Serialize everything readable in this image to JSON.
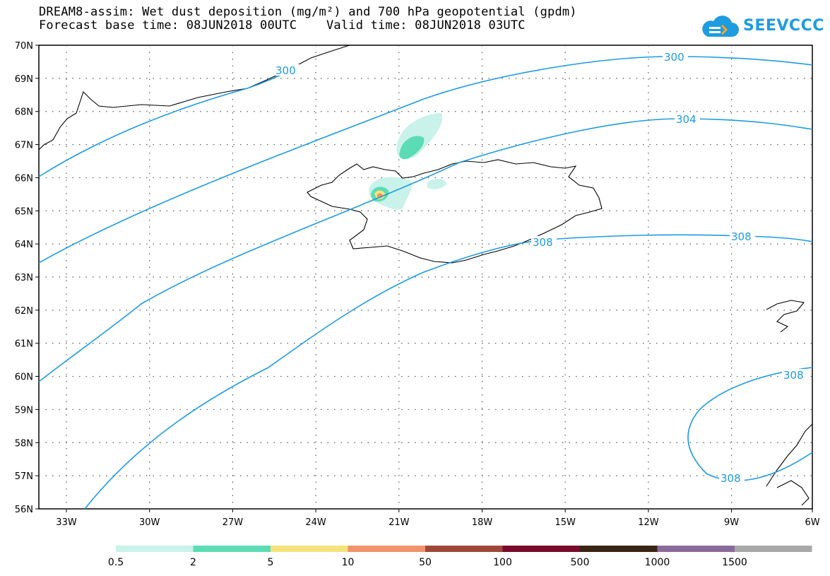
{
  "title_line1": "DREAM8-assim: Wet dust deposition (mg/m²) and 700 hPa geopotential (gpdm)",
  "title_line2": "Forecast base time: 08JUN2018 00UTC    Valid time: 08JUN2018 03UTC",
  "logo_text": "SEEVCCC",
  "colors": {
    "contour": "#1f9be0",
    "coast": "#000000",
    "grid": "#555555"
  },
  "lat_labels": [
    "70N",
    "69N",
    "68N",
    "67N",
    "66N",
    "65N",
    "64N",
    "63N",
    "62N",
    "61N",
    "60N",
    "59N",
    "58N",
    "57N",
    "56N"
  ],
  "lon_labels": [
    "33W",
    "30W",
    "27W",
    "24W",
    "21W",
    "18W",
    "15W",
    "12W",
    "9W",
    "6W"
  ],
  "contour_labels": [
    "300",
    "300",
    "304",
    "308",
    "308",
    "308",
    "308"
  ],
  "colorbar": {
    "colors": [
      "#c8f2ea",
      "#5cdcb4",
      "#f5e27a",
      "#f0926a",
      "#a04838",
      "#7a0a2c",
      "#3a2414",
      "#8a6a9a",
      "#a8a8a8"
    ],
    "labels": [
      "0.5",
      "2",
      "5",
      "10",
      "50",
      "100",
      "500",
      "1000",
      "1500"
    ]
  }
}
